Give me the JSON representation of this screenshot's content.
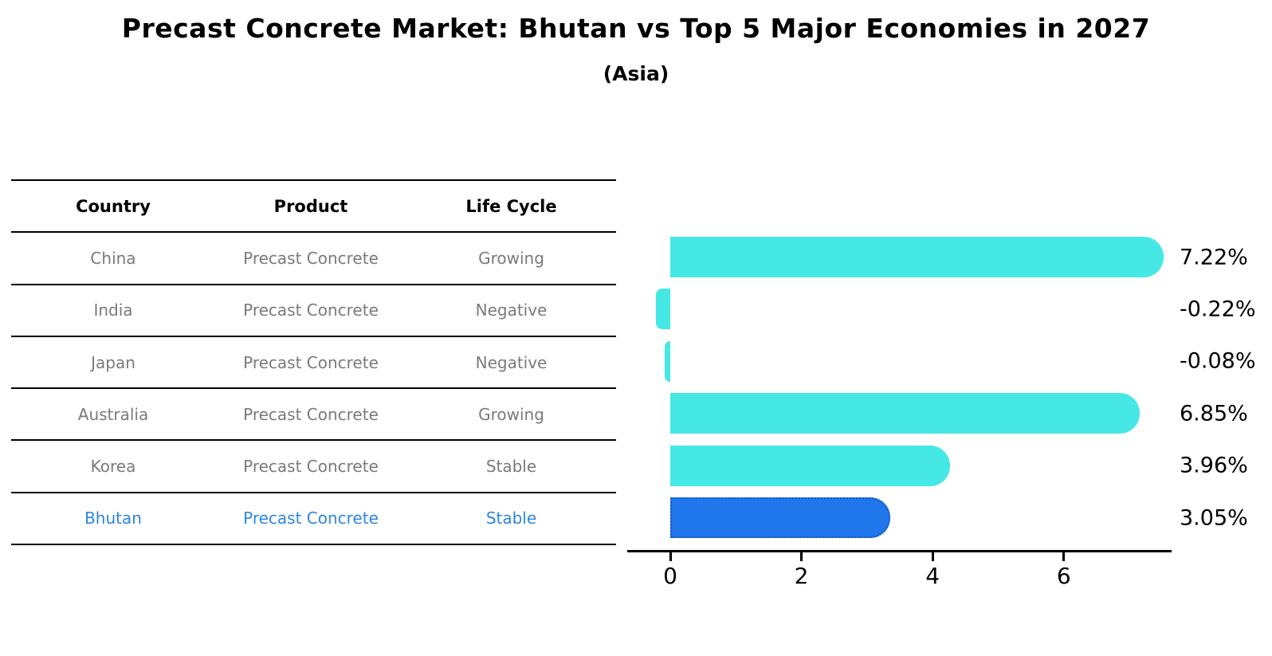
{
  "title": "Precast Concrete Market: Bhutan vs Top 5 Major Economies in 2027",
  "subtitle": "(Asia)",
  "colors": {
    "ink": "#000000",
    "table-text": "#7a7a7a",
    "highlight-text": "#2e86de",
    "bar-cyan": "#45e8e4",
    "bar-blue": "#2076eb",
    "bar-blue-border": "#1a56c0"
  },
  "table": {
    "headers": [
      "Country",
      "Product",
      "Life Cycle"
    ],
    "rows": [
      {
        "country": "China",
        "product": "Precast Concrete",
        "life_cycle": "Growing",
        "highlighted": false
      },
      {
        "country": "India",
        "product": "Precast Concrete",
        "life_cycle": "Negative",
        "highlighted": false
      },
      {
        "country": "Japan",
        "product": "Precast Concrete",
        "life_cycle": "Negative",
        "highlighted": false
      },
      {
        "country": "Australia",
        "product": "Precast Concrete",
        "life_cycle": "Growing",
        "highlighted": false
      },
      {
        "country": "Korea",
        "product": "Precast Concrete",
        "life_cycle": "Stable",
        "highlighted": false
      },
      {
        "country": "Bhutan",
        "product": "Precast Concrete",
        "life_cycle": "Stable",
        "highlighted": true
      }
    ]
  },
  "chart_data": {
    "type": "bar",
    "orientation": "horizontal",
    "title": "Precast Concrete Market: Bhutan vs Top 5 Major Economies in 2027 (Asia)",
    "categories": [
      "China",
      "India",
      "Japan",
      "Australia",
      "Korea",
      "Bhutan"
    ],
    "values": [
      7.22,
      -0.22,
      -0.08,
      6.85,
      3.96,
      3.05
    ],
    "value_labels": [
      "7.22%",
      "-0.22%",
      "-0.08%",
      "6.85%",
      "3.96%",
      "3.05%"
    ],
    "unit": "%",
    "xticks": [
      0,
      2,
      4,
      6
    ],
    "xlim": [
      -0.66,
      7.64
    ],
    "highlight_index": 5,
    "bar_color": "#45e8e4",
    "highlight_bar_color": "#2076eb",
    "grid": false,
    "legend": false
  }
}
